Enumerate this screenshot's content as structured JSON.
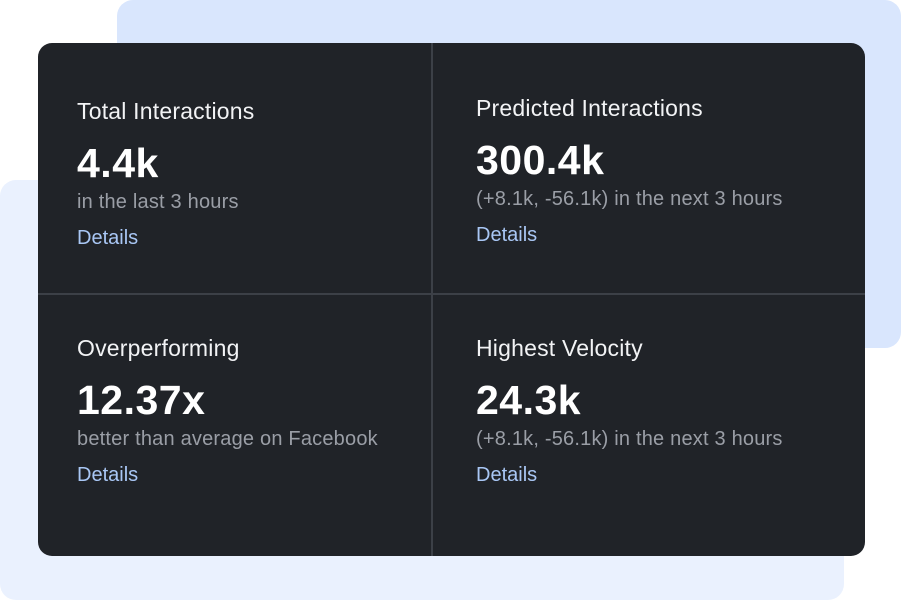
{
  "metrics": [
    {
      "title": "Total Interactions",
      "value": "4.4k",
      "subtitle": "in the last 3 hours",
      "link": "Details"
    },
    {
      "title": "Predicted Interactions",
      "value": "300.4k",
      "subtitle": "(+8.1k, -56.1k) in the next 3 hours",
      "link": "Details"
    },
    {
      "title": "Overperforming",
      "value": "12.37x",
      "subtitle": "better than average on Facebook",
      "link": "Details"
    },
    {
      "title": "Highest Velocity",
      "value": "24.3k",
      "subtitle": "(+8.1k, -56.1k) in the next 3 hours",
      "link": "Details"
    }
  ],
  "colors": {
    "card_bg": "#202328",
    "link": "#a9c7f5",
    "muted_text": "#9a9ea6",
    "accent_bg_top": "#d9e6fd",
    "accent_bg_bottom": "#eaf1fe"
  }
}
